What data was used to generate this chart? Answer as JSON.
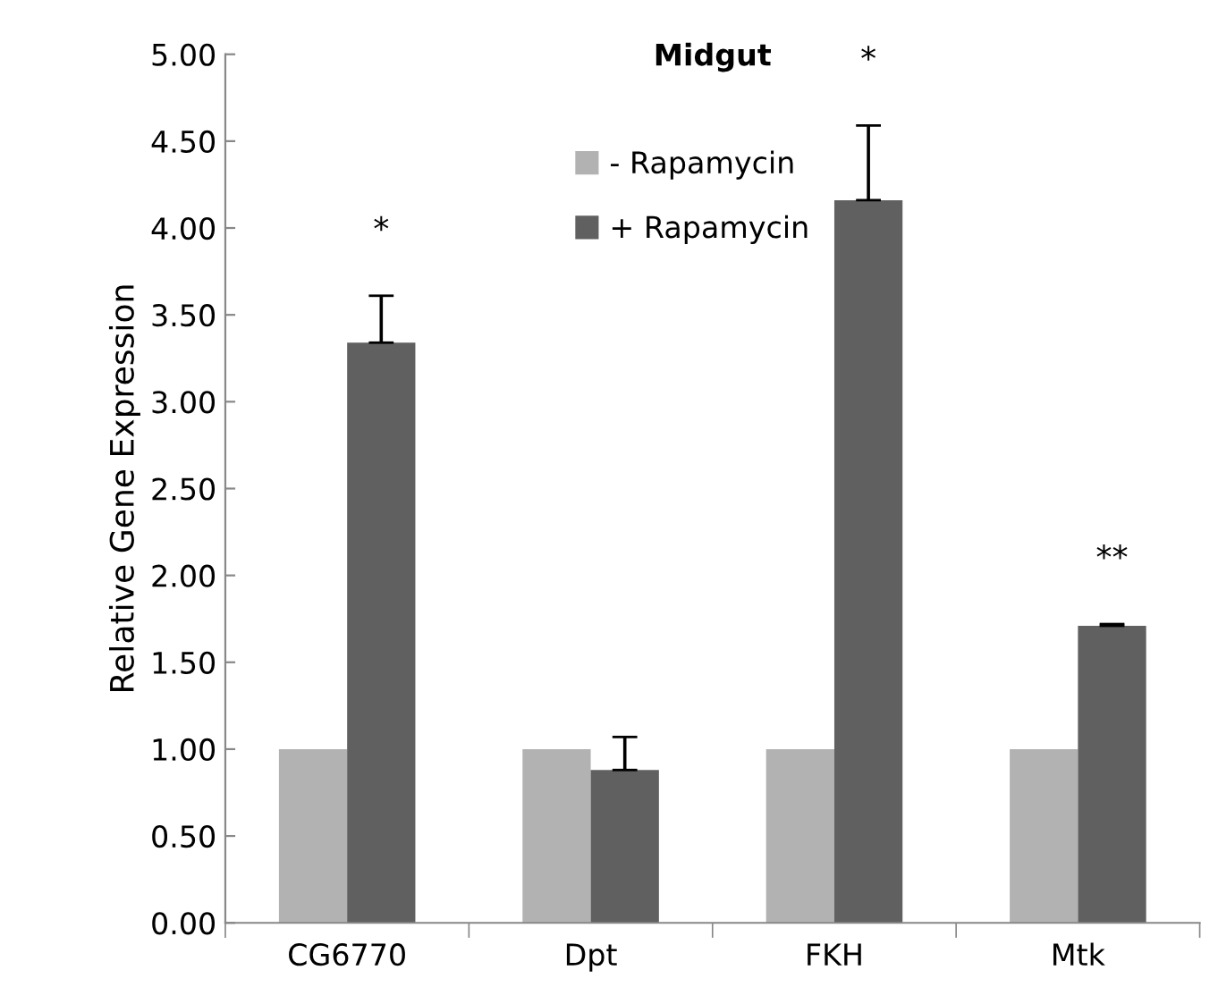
{
  "chart_data": {
    "type": "bar",
    "title": "Midgut",
    "ylabel": "Relative Gene Expression",
    "categories": [
      "CG6770",
      "Dpt",
      "FKH",
      "Mtk"
    ],
    "series": [
      {
        "name": "- Rapamycin",
        "color": "#b2b2b2",
        "values": [
          1.0,
          1.0,
          1.0,
          1.0
        ]
      },
      {
        "name": "+ Rapamycin",
        "color": "#606060",
        "values": [
          3.34,
          0.88,
          4.16,
          1.71
        ],
        "errors": [
          0.27,
          0.19,
          0.43,
          0.01
        ]
      }
    ],
    "ylim": [
      0,
      5
    ],
    "yticks": [
      {
        "value": 0,
        "label": "0.00"
      },
      {
        "value": 0.5,
        "label": "0.50"
      },
      {
        "value": 1,
        "label": "1.00"
      },
      {
        "value": 1.5,
        "label": "1.50"
      },
      {
        "value": 2,
        "label": "2.00"
      },
      {
        "value": 2.5,
        "label": "2.50"
      },
      {
        "value": 3,
        "label": "3.00"
      },
      {
        "value": 3.5,
        "label": "3.50"
      },
      {
        "value": 4,
        "label": "4.00"
      },
      {
        "value": 4.5,
        "label": "4.50"
      },
      {
        "value": 5,
        "label": "5.00"
      }
    ],
    "annotations": [
      "*",
      "*",
      "**"
    ],
    "legend": "top",
    "grid": false
  }
}
